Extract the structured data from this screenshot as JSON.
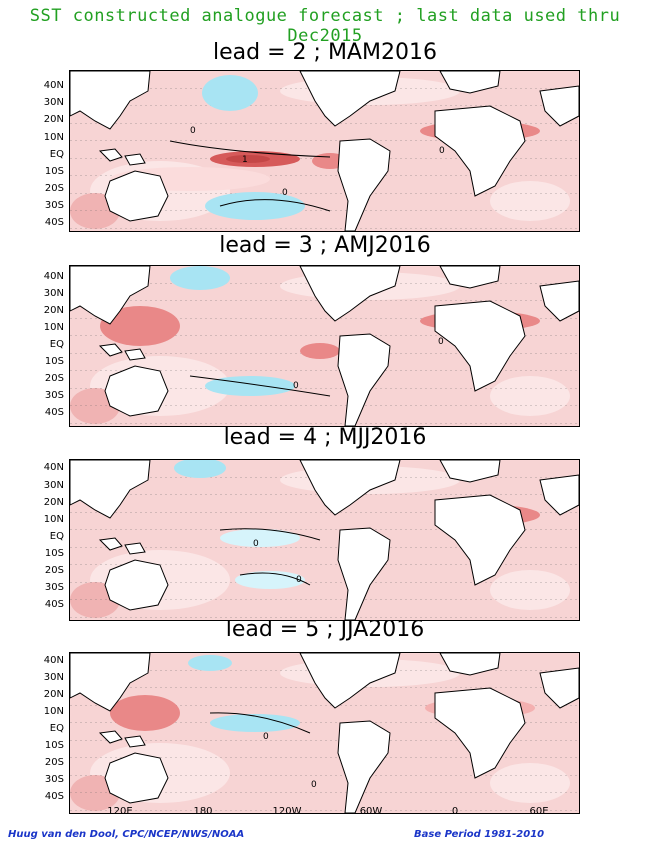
{
  "main_title": "SST constructed analogue forecast ; last data used thru Dec2015",
  "lat_labels": [
    "40N",
    "30N",
    "20N",
    "10N",
    "EQ",
    "10S",
    "20S",
    "30S",
    "40S"
  ],
  "lon_labels": [
    "120E",
    "180",
    "120W",
    "60W",
    "0",
    "60E"
  ],
  "contour_label": "0",
  "max_contour_label": "1",
  "panels": [
    {
      "title": "lead = 2 ; MAM2016"
    },
    {
      "title": "lead = 3 ; AMJ2016"
    },
    {
      "title": "lead = 4 ; MJJ2016"
    },
    {
      "title": "lead = 5 ; JJA2016"
    }
  ],
  "footer": {
    "credit": "Huug van den Dool, CPC/NCEP/NWS/NOAA",
    "base_period": "Base Period 1981-2010"
  },
  "colors": {
    "title": "#22a022",
    "warm_light": "#fbdcdc",
    "warm_mid": "#f4b0b0",
    "warm_strong": "#e98888",
    "warm_deep": "#d65a5a",
    "cool_light": "#d6f4fb",
    "cool_mid": "#a8e4f3",
    "land": "#ffffff",
    "footer": "#1a35c8"
  }
}
